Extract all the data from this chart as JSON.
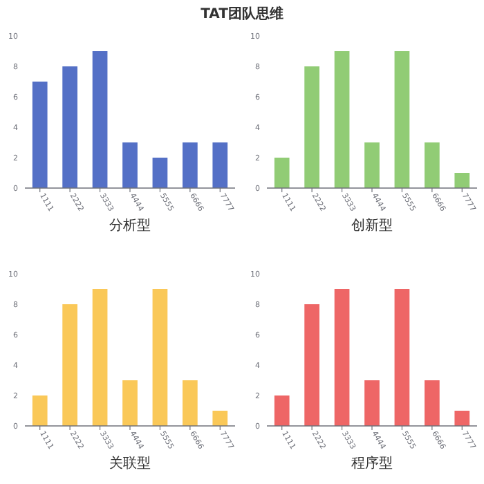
{
  "chart_data": [
    {
      "type": "bar",
      "title": "TAT团队思维",
      "xlabel": "分析型",
      "categories": [
        "1111",
        "2222",
        "3333",
        "4444",
        "5555",
        "6666",
        "7777"
      ],
      "values": [
        7,
        8,
        9,
        3,
        2,
        3,
        3
      ],
      "color": "#5470c6",
      "ylim": [
        0,
        10
      ],
      "yticks": [
        0,
        2,
        4,
        6,
        8,
        10
      ]
    },
    {
      "type": "bar",
      "xlabel": "创新型",
      "categories": [
        "1111",
        "2222",
        "3333",
        "4444",
        "5555",
        "6666",
        "7777"
      ],
      "values": [
        2,
        8,
        9,
        3,
        9,
        3,
        1
      ],
      "color": "#91cc75",
      "ylim": [
        0,
        10
      ],
      "yticks": [
        0,
        2,
        4,
        6,
        8,
        10
      ]
    },
    {
      "type": "bar",
      "xlabel": "关联型",
      "categories": [
        "1111",
        "2222",
        "3333",
        "4444",
        "5555",
        "6666",
        "7777"
      ],
      "values": [
        2,
        8,
        9,
        3,
        9,
        3,
        1
      ],
      "color": "#fac858",
      "ylim": [
        0,
        10
      ],
      "yticks": [
        0,
        2,
        4,
        6,
        8,
        10
      ]
    },
    {
      "type": "bar",
      "xlabel": "程序型",
      "categories": [
        "1111",
        "2222",
        "3333",
        "4444",
        "5555",
        "6666",
        "7777"
      ],
      "values": [
        2,
        8,
        9,
        3,
        9,
        3,
        1
      ],
      "color": "#ee6666",
      "ylim": [
        0,
        10
      ],
      "yticks": [
        0,
        2,
        4,
        6,
        8,
        10
      ]
    }
  ]
}
